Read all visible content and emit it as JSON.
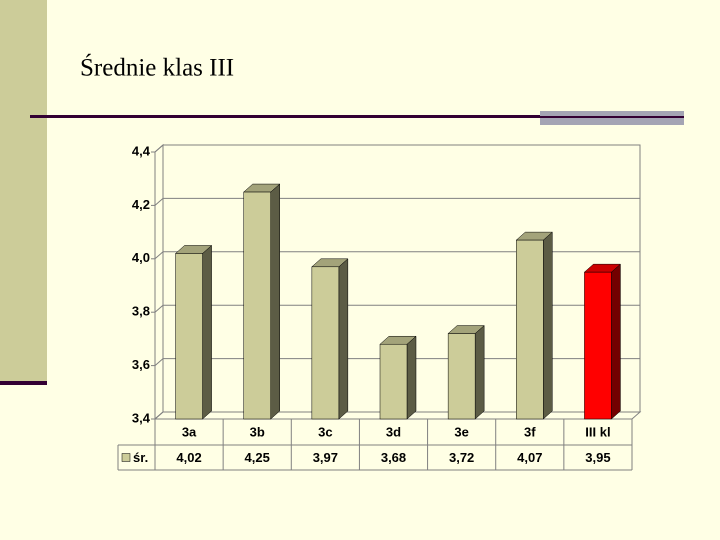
{
  "title": "Średnie klas III",
  "chart_data": {
    "type": "bar3d",
    "categories": [
      "3a",
      "3b",
      "3c",
      "3d",
      "3e",
      "3f",
      "III kl"
    ],
    "series": [
      {
        "name": "śr.",
        "color": "#cccc99",
        "colors": [
          "#cccc99",
          "#cccc99",
          "#cccc99",
          "#cccc99",
          "#cccc99",
          "#cccc99",
          "#ff0000"
        ],
        "values": [
          4.02,
          4.25,
          3.97,
          3.68,
          3.72,
          4.07,
          3.95
        ],
        "value_labels": [
          "4,02",
          "4,25",
          "3,97",
          "3,68",
          "3,72",
          "4,07",
          "3,95"
        ]
      }
    ],
    "ylim": [
      3.4,
      4.4
    ],
    "yticks": [
      {
        "value": 3.4,
        "label": "3,4"
      },
      {
        "value": 3.6,
        "label": "3,6"
      },
      {
        "value": 3.8,
        "label": "3,8"
      },
      {
        "value": 4.0,
        "label": "4,0"
      },
      {
        "value": 4.2,
        "label": "4,2"
      },
      {
        "value": 4.4,
        "label": "4,4"
      }
    ],
    "grid": true
  }
}
